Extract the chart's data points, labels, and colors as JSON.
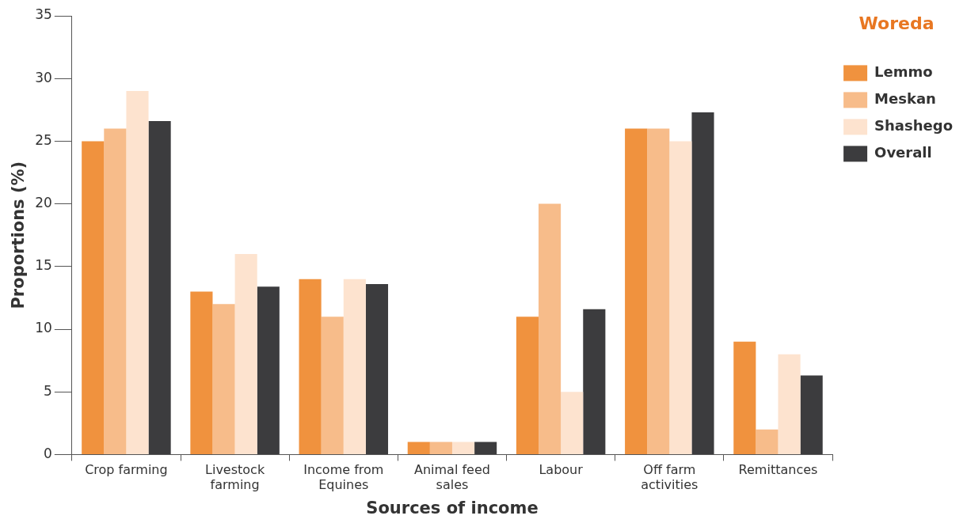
{
  "chart_data": {
    "type": "bar",
    "xlabel": "Sources of income",
    "ylabel": "Proportions (%)",
    "legend_title": "Woreda",
    "categories": [
      "Crop farming",
      "Livestock farming",
      "Income from Equines",
      "Animal feed sales",
      "Labour",
      "Off farm activities",
      "Remittances"
    ],
    "series": [
      {
        "name": "Lemmo",
        "color": "#f0923e",
        "values": [
          25,
          13,
          14,
          1,
          11,
          26,
          9
        ]
      },
      {
        "name": "Meskan",
        "color": "#f7bc8a",
        "values": [
          26,
          12,
          11,
          1,
          20,
          26,
          2
        ]
      },
      {
        "name": "Shashego",
        "color": "#fde3cf",
        "values": [
          29,
          16,
          14,
          1,
          5,
          25,
          8
        ]
      },
      {
        "name": "Overall",
        "color": "#3c3c3e",
        "values": [
          26.6,
          13.4,
          13.6,
          1,
          11.6,
          27.3,
          6.3
        ]
      }
    ],
    "ylim": [
      0,
      35
    ],
    "yticks": [
      0,
      5,
      10,
      15,
      20,
      25,
      30,
      35
    ],
    "grid": false,
    "legend": "top right"
  }
}
